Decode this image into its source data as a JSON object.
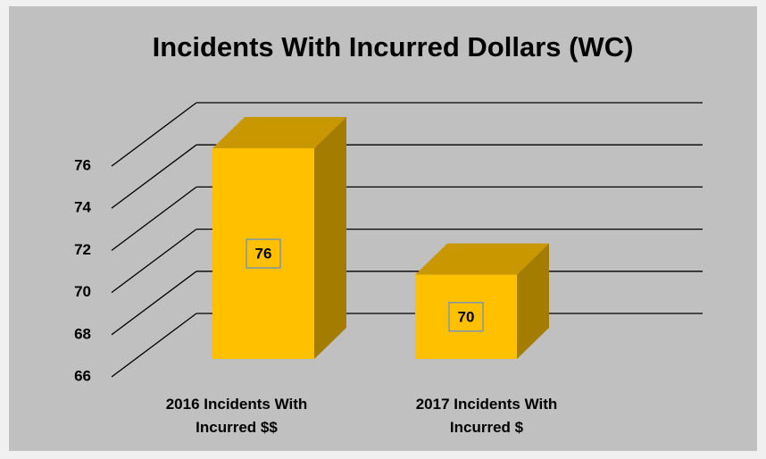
{
  "chart_data": {
    "type": "bar3d",
    "title": "Incidents With Incurred Dollars (WC)",
    "categories": [
      "2016 Incidents With Incurred $$",
      "2017 Incidents With Incurred $"
    ],
    "values": [
      76,
      70
    ],
    "color": "#ffc000",
    "ylim": [
      66,
      76
    ],
    "yticks": [
      66,
      68,
      70,
      72,
      74,
      76
    ],
    "grid": true
  }
}
